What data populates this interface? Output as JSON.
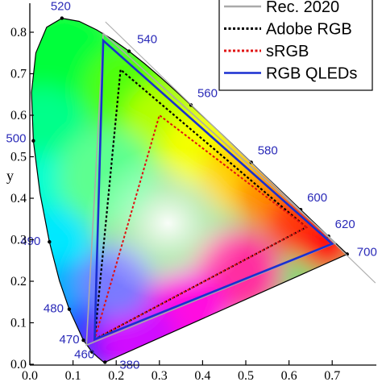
{
  "chart_data": {
    "type": "line",
    "title": "",
    "xlabel": "",
    "ylabel": "y",
    "xlim": [
      0.0,
      0.8
    ],
    "ylim": [
      0.0,
      0.85
    ],
    "x_ticks": [
      "0.0",
      "0.1",
      "0.2",
      "0.3",
      "0.4",
      "0.5",
      "0.6",
      "0.7"
    ],
    "y_ticks": [
      "0.0",
      "0.1",
      "0.2",
      "0.3",
      "0.4",
      "0.5",
      "0.6",
      "0.7",
      "0.8"
    ],
    "grid": false,
    "legend_position": "top-right",
    "spectral_locus": [
      [
        0.1741,
        0.005
      ],
      [
        0.173,
        0.0048
      ],
      [
        0.1714,
        0.0051
      ],
      [
        0.1689,
        0.0069
      ],
      [
        0.1644,
        0.0109
      ],
      [
        0.1566,
        0.0177
      ],
      [
        0.144,
        0.0297
      ],
      [
        0.1241,
        0.0578
      ],
      [
        0.0913,
        0.1327
      ],
      [
        0.0687,
        0.2007
      ],
      [
        0.0454,
        0.295
      ],
      [
        0.0235,
        0.4127
      ],
      [
        0.0082,
        0.5384
      ],
      [
        0.0039,
        0.6548
      ],
      [
        0.0139,
        0.7502
      ],
      [
        0.0389,
        0.812
      ],
      [
        0.0743,
        0.8338
      ],
      [
        0.1142,
        0.8262
      ],
      [
        0.1547,
        0.8059
      ],
      [
        0.1929,
        0.7816
      ],
      [
        0.2296,
        0.7543
      ],
      [
        0.2658,
        0.7243
      ],
      [
        0.3016,
        0.6923
      ],
      [
        0.3373,
        0.6589
      ],
      [
        0.3731,
        0.6245
      ],
      [
        0.4087,
        0.5896
      ],
      [
        0.4441,
        0.5547
      ],
      [
        0.4788,
        0.5202
      ],
      [
        0.5125,
        0.4866
      ],
      [
        0.5448,
        0.4544
      ],
      [
        0.5752,
        0.4242
      ],
      [
        0.6029,
        0.3965
      ],
      [
        0.627,
        0.3725
      ],
      [
        0.6482,
        0.3514
      ],
      [
        0.6658,
        0.334
      ],
      [
        0.6801,
        0.3197
      ],
      [
        0.6915,
        0.3083
      ],
      [
        0.7006,
        0.2993
      ],
      [
        0.7079,
        0.292
      ],
      [
        0.714,
        0.2859
      ],
      [
        0.719,
        0.2809
      ],
      [
        0.723,
        0.277
      ],
      [
        0.726,
        0.274
      ],
      [
        0.7283,
        0.2717
      ],
      [
        0.73,
        0.27
      ],
      [
        0.7347,
        0.2653
      ]
    ],
    "wavelength_labels": [
      {
        "label": "380",
        "x": 0.1741,
        "y": 0.005
      },
      {
        "label": "460",
        "x": 0.144,
        "y": 0.0297
      },
      {
        "label": "470",
        "x": 0.1241,
        "y": 0.0578
      },
      {
        "label": "480",
        "x": 0.0913,
        "y": 0.1327
      },
      {
        "label": "490",
        "x": 0.0454,
        "y": 0.295
      },
      {
        "label": "500",
        "x": 0.0082,
        "y": 0.5384
      },
      {
        "label": "520",
        "x": 0.0743,
        "y": 0.8338
      },
      {
        "label": "540",
        "x": 0.2296,
        "y": 0.7543
      },
      {
        "label": "560",
        "x": 0.3731,
        "y": 0.6245
      },
      {
        "label": "580",
        "x": 0.5125,
        "y": 0.4866
      },
      {
        "label": "600",
        "x": 0.627,
        "y": 0.3725
      },
      {
        "label": "620",
        "x": 0.6915,
        "y": 0.3083
      },
      {
        "label": "700",
        "x": 0.7347,
        "y": 0.2653
      }
    ],
    "series": [
      {
        "name": "Rec. 2020",
        "color": "#aaaaaa",
        "style": "solid",
        "points": [
          [
            0.708,
            0.292
          ],
          [
            0.17,
            0.797
          ],
          [
            0.131,
            0.046
          ]
        ]
      },
      {
        "name": "Adobe RGB",
        "color": "#000000",
        "style": "dotted",
        "points": [
          [
            0.64,
            0.33
          ],
          [
            0.21,
            0.71
          ],
          [
            0.15,
            0.06
          ]
        ]
      },
      {
        "name": "sRGB",
        "color": "#e01010",
        "style": "dotted",
        "points": [
          [
            0.64,
            0.33
          ],
          [
            0.3,
            0.6
          ],
          [
            0.15,
            0.06
          ]
        ]
      },
      {
        "name": "RGB QLEDs",
        "color": "#1a2fd0",
        "style": "solid",
        "points": [
          [
            0.7,
            0.29
          ],
          [
            0.17,
            0.78
          ],
          [
            0.15,
            0.06
          ]
        ]
      }
    ]
  }
}
